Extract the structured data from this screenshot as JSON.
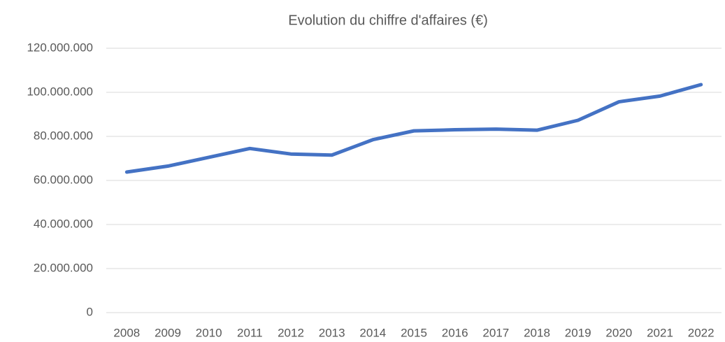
{
  "chart_data": {
    "type": "line",
    "title": "Evolution du chiffre d'affaires (€)",
    "categories": [
      "2008",
      "2009",
      "2010",
      "2011",
      "2012",
      "2013",
      "2014",
      "2015",
      "2016",
      "2017",
      "2018",
      "2019",
      "2020",
      "2021",
      "2022"
    ],
    "series": [
      {
        "name": "Chiffre d'affaires",
        "color": "#4472c4",
        "values": [
          63800000,
          66500000,
          70500000,
          74500000,
          72000000,
          71500000,
          78500000,
          82500000,
          83000000,
          83300000,
          82800000,
          87300000,
          95700000,
          98300000,
          103500000
        ]
      }
    ],
    "ylim": [
      0,
      120000000
    ],
    "yticks": [
      0,
      {
        "value": 20000000,
        "label": "20.000.000"
      },
      {
        "value": 40000000,
        "label": "40.000.000"
      },
      {
        "value": 60000000,
        "label": "60.000.000"
      },
      {
        "value": 80000000,
        "label": "80.000.000"
      },
      {
        "value": 100000000,
        "label": "100.000.000"
      },
      {
        "value": 120000000,
        "label": "120.000.000"
      }
    ],
    "grid": true
  }
}
